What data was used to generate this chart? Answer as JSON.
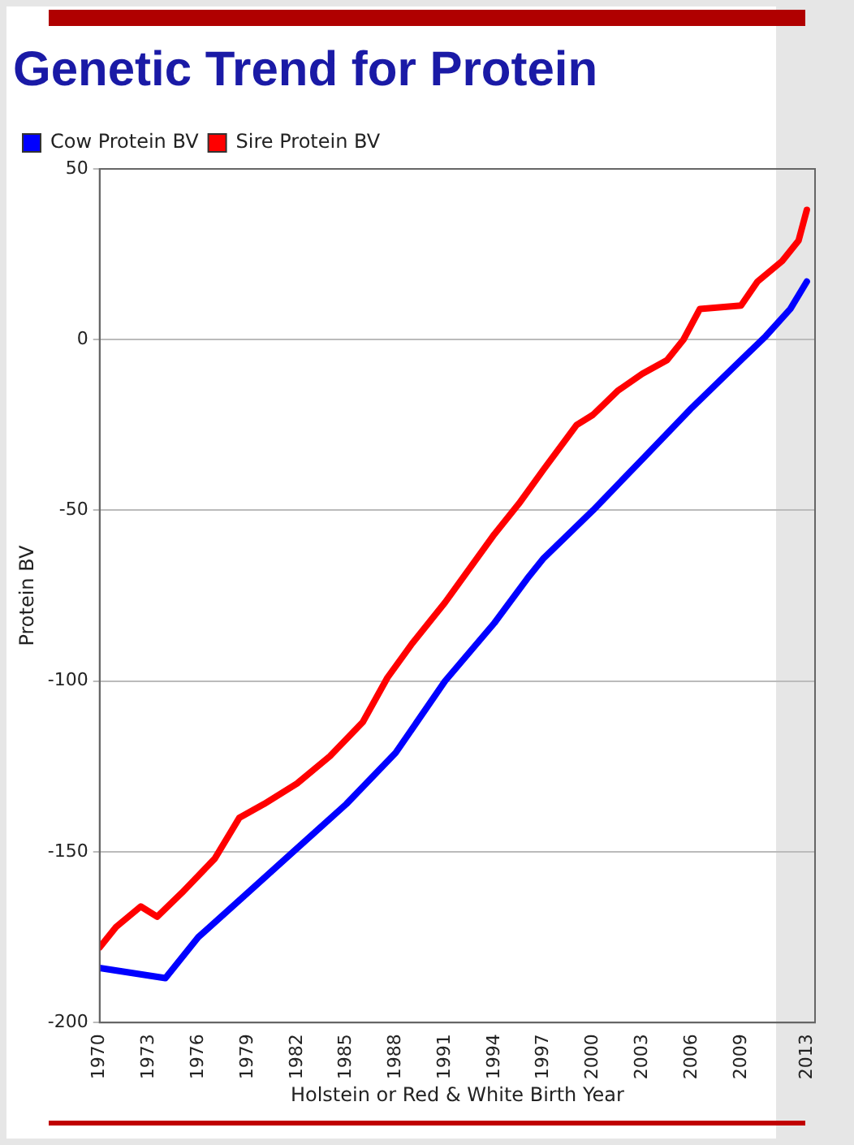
{
  "chart_data": {
    "type": "line",
    "title": "Genetic Trend for Protein",
    "xlabel": "Holstein or Red & White Birth Year",
    "ylabel": "Protein BV",
    "xlim": [
      1970,
      2013.5
    ],
    "xticks": [
      1970,
      1973,
      1976,
      1979,
      1982,
      1985,
      1988,
      1991,
      1994,
      1997,
      2000,
      2003,
      2006,
      2009,
      2013
    ],
    "ylim": [
      -200,
      50
    ],
    "yticks": [
      -200,
      -150,
      -100,
      -50,
      0,
      50
    ],
    "grid": "y",
    "legend": "top",
    "marker": "none",
    "line_style": "solid",
    "series": [
      {
        "name": "Cow Protein BV",
        "color": "#0000ff",
        "x": [
          1970,
          1974,
          1976,
          1979,
          1982,
          1985,
          1988,
          1991,
          1994,
          1996,
          1997,
          2000,
          2003,
          2006,
          2007.5,
          2009,
          2010.5,
          2012,
          2013
        ],
        "values": [
          -184,
          -187,
          -175,
          -162,
          -149,
          -136,
          -121,
          -100,
          -83,
          -70,
          -64,
          -50,
          -35,
          -20,
          -13,
          -6,
          1,
          9,
          17
        ]
      },
      {
        "name": "Sire Protein BV",
        "color": "#ff0000",
        "x": [
          1970,
          1971,
          1972.5,
          1973.5,
          1975,
          1977,
          1978.5,
          1980,
          1982,
          1984,
          1986,
          1987.5,
          1989,
          1991,
          1994,
          1995.5,
          1997,
          1999,
          2000,
          2001.5,
          2003,
          2004.5,
          2005.5,
          2006.5,
          2009,
          2010,
          2011.5,
          2012.5,
          2013
        ],
        "values": [
          -178,
          -172,
          -166,
          -169,
          -162,
          -152,
          -140,
          -136,
          -130,
          -122,
          -112,
          -99,
          -89,
          -77,
          -57,
          -48,
          -38,
          -25,
          -22,
          -15,
          -10,
          -6,
          0,
          9,
          10,
          17,
          23,
          29,
          38
        ]
      }
    ]
  }
}
